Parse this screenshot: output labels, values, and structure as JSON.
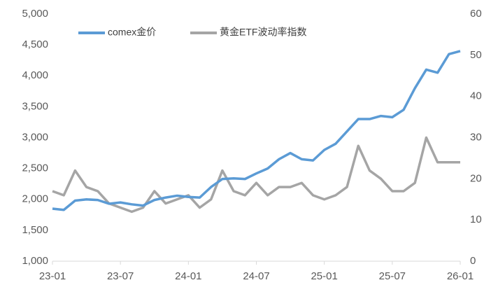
{
  "chart_data": {
    "type": "line",
    "x": [
      "23-01",
      "23-02",
      "23-03",
      "23-04",
      "23-05",
      "23-06",
      "23-07",
      "23-08",
      "23-09",
      "23-10",
      "23-11",
      "23-12",
      "24-01",
      "24-02",
      "24-03",
      "24-04",
      "24-05",
      "24-06",
      "24-07",
      "24-08",
      "24-09",
      "24-10",
      "24-11",
      "24-12",
      "25-01",
      "25-02",
      "25-03",
      "25-04",
      "25-05",
      "25-06",
      "25-07",
      "25-08",
      "25-09",
      "25-10",
      "25-11",
      "25-12",
      "26-01"
    ],
    "series": [
      {
        "name": "comex金价",
        "color": "#5b9bd5",
        "values": [
          1850,
          1830,
          1980,
          2000,
          1990,
          1930,
          1950,
          1920,
          1900,
          1990,
          2030,
          2060,
          2040,
          2030,
          2200,
          2330,
          2340,
          2330,
          2420,
          2500,
          2650,
          2750,
          2650,
          2630,
          2800,
          2900,
          3100,
          3300,
          3300,
          3350,
          3330,
          3450,
          3800,
          4100,
          4050,
          4350,
          4400
        ]
      },
      {
        "name": "黄金ETF波动率指数",
        "color": "#a5a5a5",
        "axis": "y2",
        "values": [
          17,
          16,
          22,
          18,
          17,
          14,
          13,
          12,
          13,
          17,
          14,
          15,
          16,
          13,
          15,
          22,
          17,
          16,
          19,
          16,
          18,
          18,
          19,
          16,
          15,
          16,
          18,
          28,
          22,
          20,
          17,
          17,
          19,
          30,
          24,
          24,
          24
        ]
      }
    ],
    "ylim": [
      1000,
      5000
    ],
    "yticks": [
      {
        "value": 1000,
        "label": "1,000"
      },
      {
        "value": 1500,
        "label": "1,500"
      },
      {
        "value": 2000,
        "label": "2,000"
      },
      {
        "value": 2500,
        "label": "2,500"
      },
      {
        "value": 3000,
        "label": "3,000"
      },
      {
        "value": 3500,
        "label": "3,500"
      },
      {
        "value": 4000,
        "label": "4,000"
      },
      {
        "value": 4500,
        "label": "4,500"
      },
      {
        "value": 5000,
        "label": "5,000"
      }
    ],
    "y2lim": [
      0,
      60
    ],
    "y2ticks": [
      0,
      10,
      20,
      30,
      40,
      50,
      60
    ],
    "xticks": [
      "23-01",
      "23-07",
      "24-01",
      "24-07",
      "25-01",
      "25-07",
      "26-01"
    ],
    "legend": "top"
  }
}
